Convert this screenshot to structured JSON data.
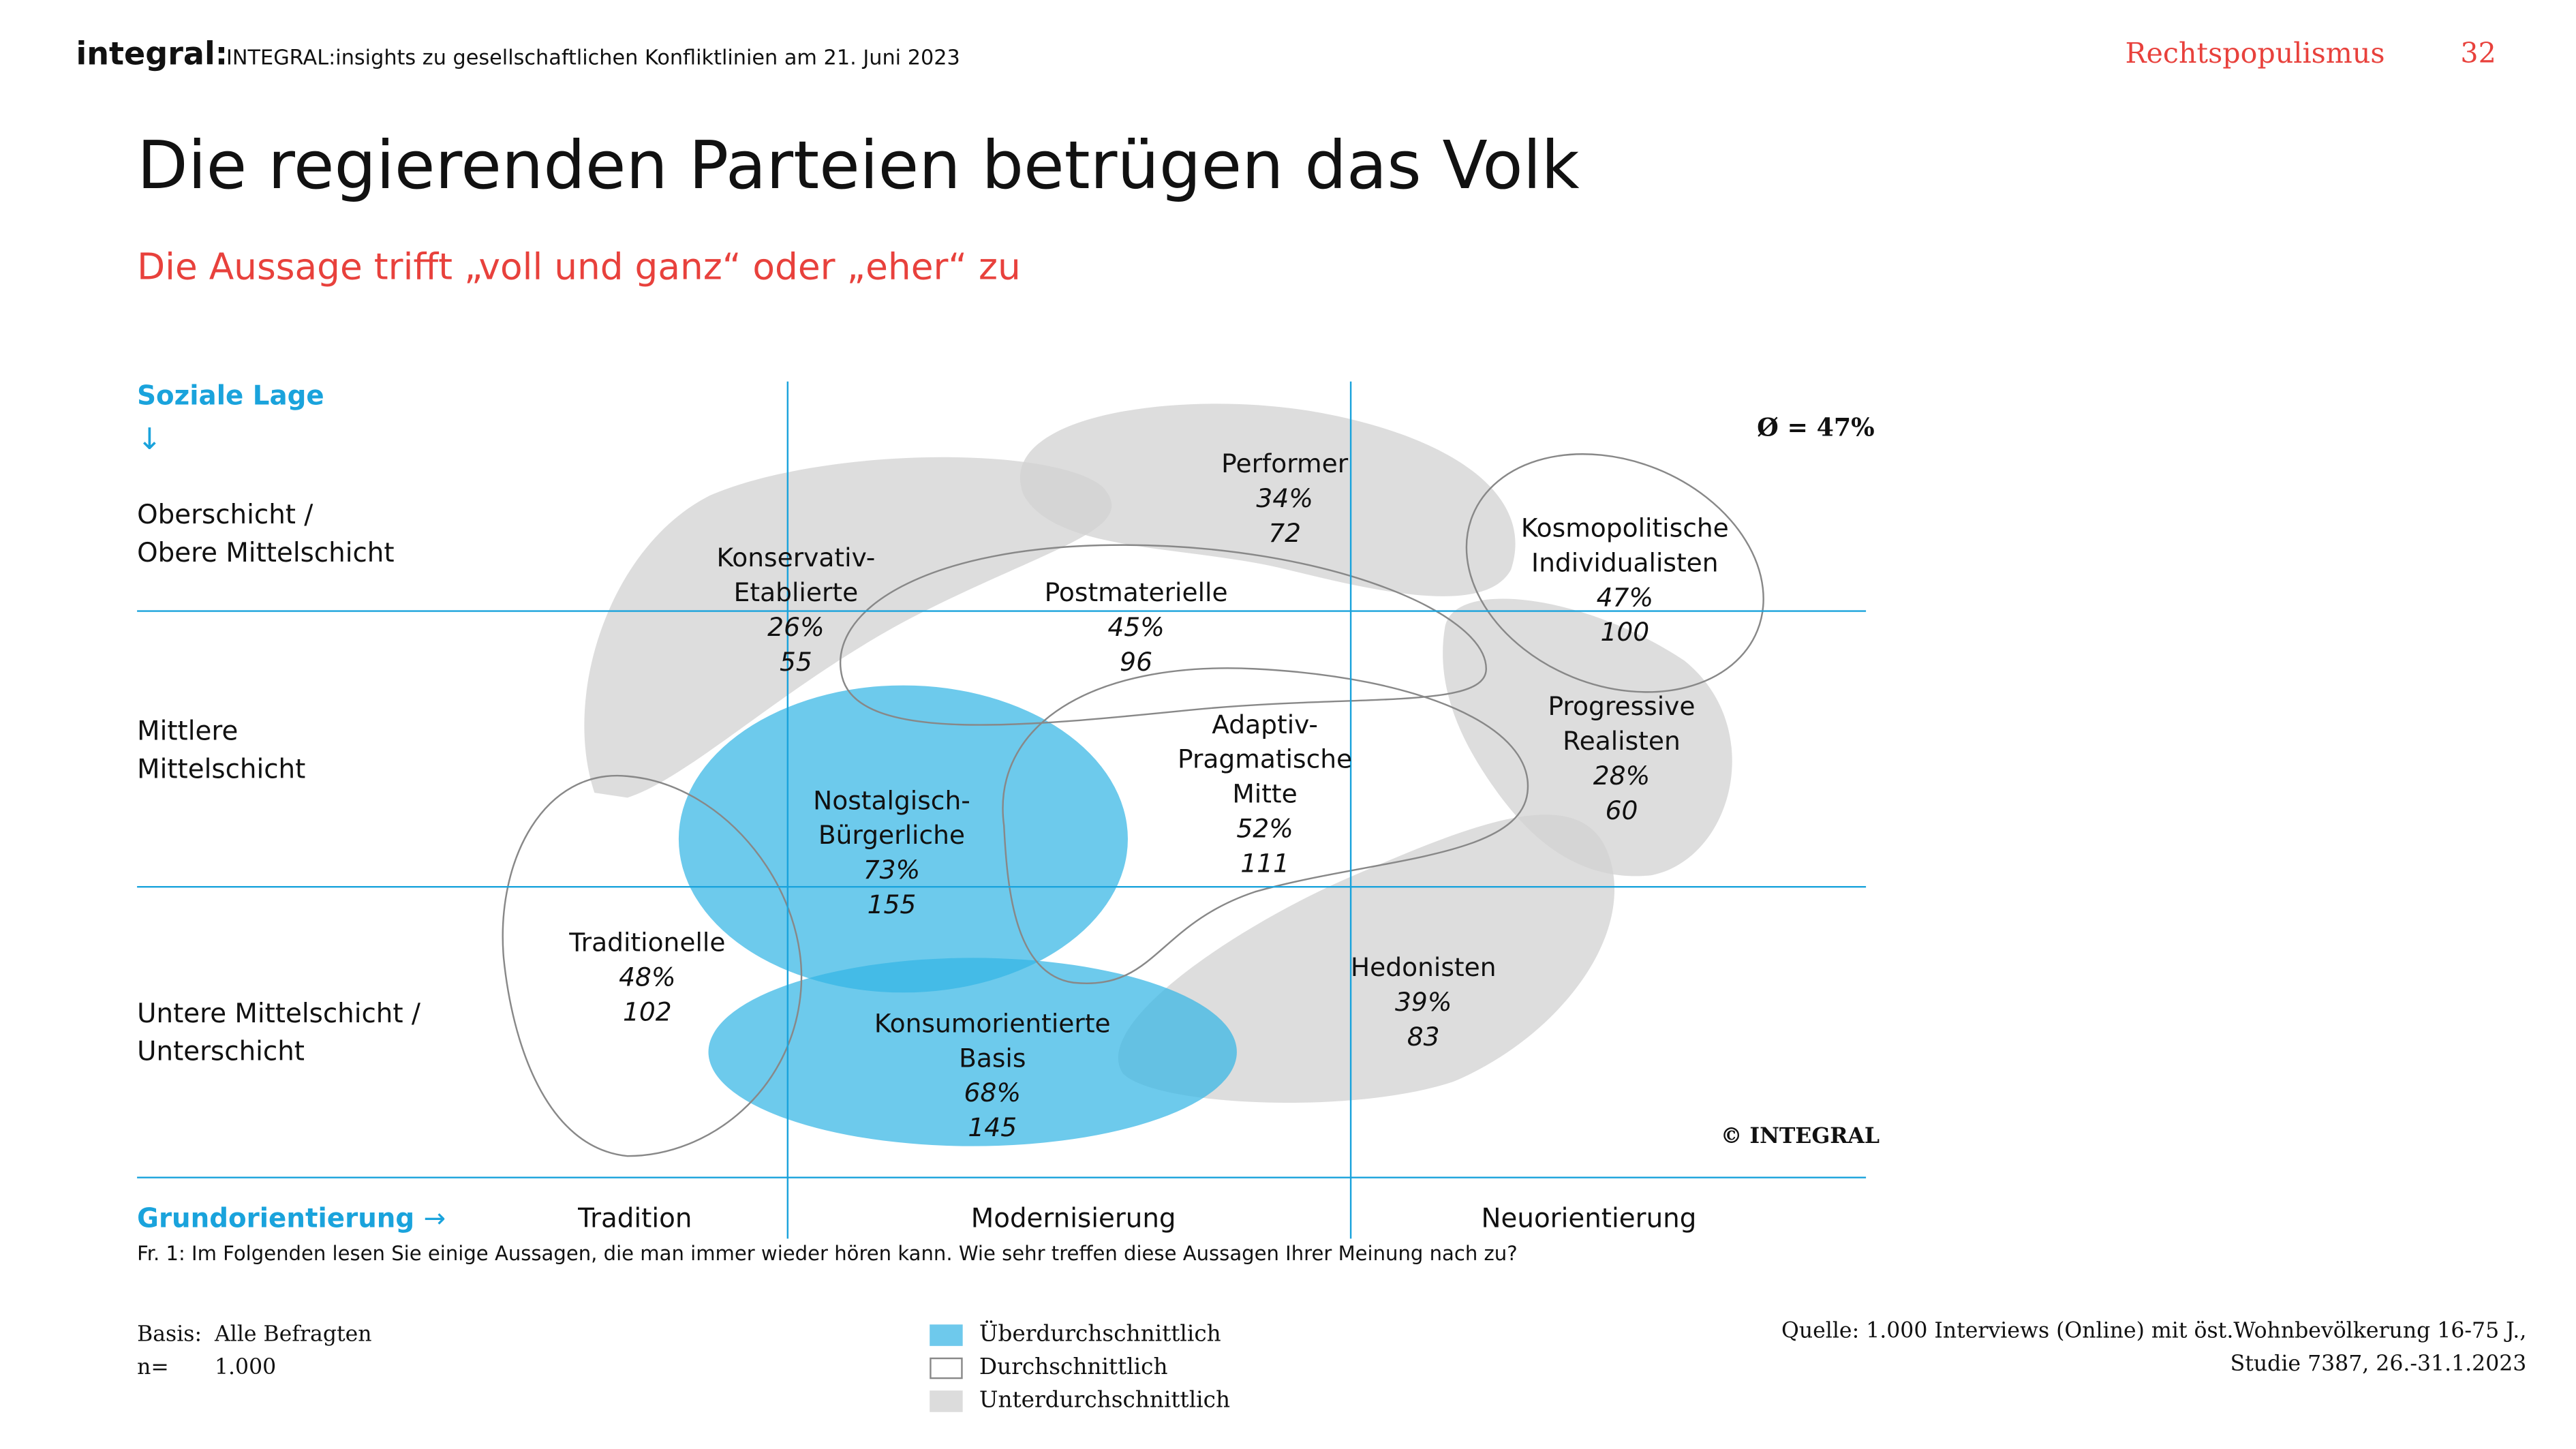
{
  "header": {
    "logo": "integral:",
    "subtitle": "INTEGRAL:insights zu gesellschaftlichen Konfliktlinien am 21. Juni 2023",
    "topic": "Rechtspopulismus",
    "page": "32"
  },
  "title": "Die regierenden Parteien betrügen das Volk",
  "subtitle": "Die Aussage trifft „voll und ganz“ oder „eher“ zu",
  "axes": {
    "y_label": "Soziale Lage",
    "y_arrow": "↓",
    "rows": [
      "Oberschicht /",
      "Obere Mittelschicht",
      "Mittlere",
      "Mittelschicht",
      "Untere Mittelschicht /",
      "Unterschicht"
    ],
    "x_label": "Grundorientierung",
    "x_arrow": "→",
    "cols": [
      "Tradition",
      "Modernisierung",
      "Neuorientierung"
    ]
  },
  "average": "Ø = 47%",
  "copyright": "© INTEGRAL",
  "milieus": [
    {
      "name1": "Konservativ-",
      "name2": "Etablierte",
      "pct": "26%",
      "n": "55",
      "level": "below"
    },
    {
      "name1": "Performer",
      "pct": "34%",
      "n": "72",
      "level": "below"
    },
    {
      "name1": "Postmaterielle",
      "pct": "45%",
      "n": "96",
      "level": "average"
    },
    {
      "name1": "Kosmopolitische",
      "name2": "Individualisten",
      "pct": "47%",
      "n": "100",
      "level": "average"
    },
    {
      "name1": "Progressive",
      "name2": "Realisten",
      "pct": "28%",
      "n": "60",
      "level": "below"
    },
    {
      "name1": "Adaptiv-",
      "name2": "Pragmatische",
      "name3": "Mitte",
      "pct": "52%",
      "n": "111",
      "level": "average"
    },
    {
      "name1": "Nostalgisch-",
      "name2": "Bürgerliche",
      "pct": "73%",
      "n": "155",
      "level": "above"
    },
    {
      "name1": "Traditionelle",
      "pct": "48%",
      "n": "102",
      "level": "average"
    },
    {
      "name1": "Konsumorientierte",
      "name2": "Basis",
      "pct": "68%",
      "n": "145",
      "level": "above"
    },
    {
      "name1": "Hedonisten",
      "pct": "39%",
      "n": "83",
      "level": "below"
    }
  ],
  "question": "Fr. 1: Im Folgenden lesen Sie einige Aussagen, die man immer wieder hören kann. Wie sehr treffen diese Aussagen Ihrer Meinung nach zu?",
  "basis": {
    "label": "Basis:",
    "value": "Alle Befragten",
    "n_label": "n=",
    "n_value": "1.000"
  },
  "legend": [
    "Überdurchschnittlich",
    "Durchschnittlich",
    "Unterdurchschnittlich"
  ],
  "source": {
    "line1": "Quelle: 1.000 Interviews (Online) mit öst.Wohnbevölkerung 16-75 J.,",
    "line2": "Studie 7387, 26.-31.1.2023"
  },
  "colors": {
    "accent": "#1aa3dc",
    "red": "#e8413c",
    "above": "#35b5e5",
    "below": "#d6d6d6"
  }
}
